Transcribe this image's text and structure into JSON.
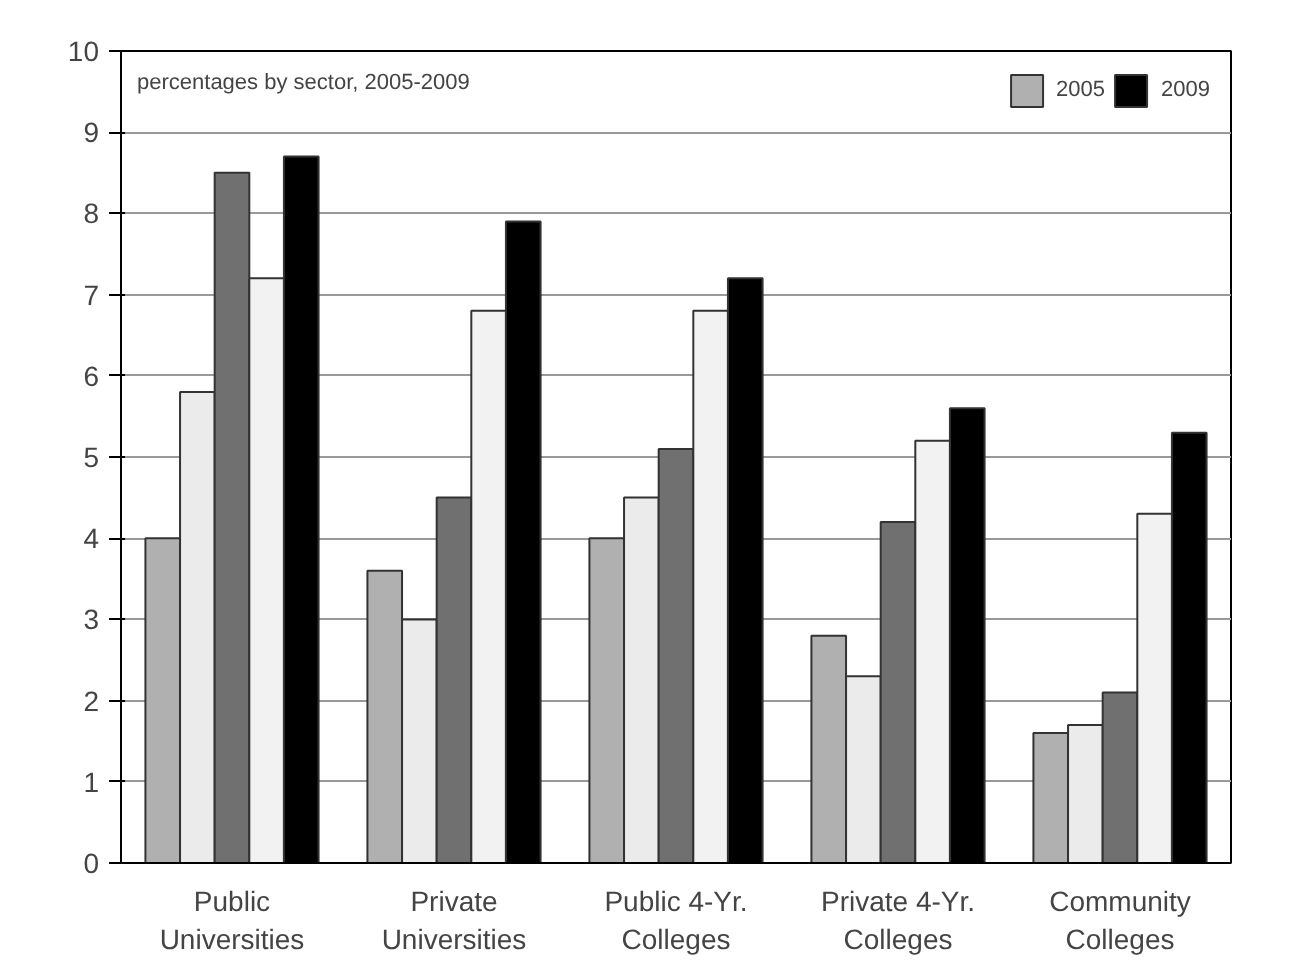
{
  "chart_data": {
    "type": "bar",
    "categories": [
      "Public\nUniversities",
      "Private\nUniversities",
      "Public 4-Yr.\nColleges",
      "Private 4-Yr.\nColleges",
      "Community\nColleges"
    ],
    "series": [
      {
        "name": "2005",
        "color": "#b0b0b0",
        "values": [
          4.0,
          3.6,
          4.0,
          2.8,
          1.6
        ]
      },
      {
        "color": "#ebebeb",
        "values": [
          5.8,
          3.0,
          4.5,
          2.3,
          1.7
        ]
      },
      {
        "color": "#707070",
        "values": [
          8.5,
          4.5,
          5.1,
          4.2,
          2.1
        ]
      },
      {
        "color": "#f2f2f2",
        "values": [
          7.2,
          6.8,
          6.8,
          5.2,
          4.3
        ]
      },
      {
        "name": "2009",
        "color": "#000000",
        "values": [
          8.7,
          7.9,
          7.2,
          5.6,
          5.3
        ]
      }
    ],
    "annotations": [
      "percentages by sector, 2005-2009"
    ],
    "ylim": [
      0,
      10
    ],
    "yticks": [
      0,
      1,
      2,
      3,
      4,
      5,
      6,
      7,
      8,
      9,
      10
    ],
    "grid": "y",
    "legend": "top right"
  }
}
